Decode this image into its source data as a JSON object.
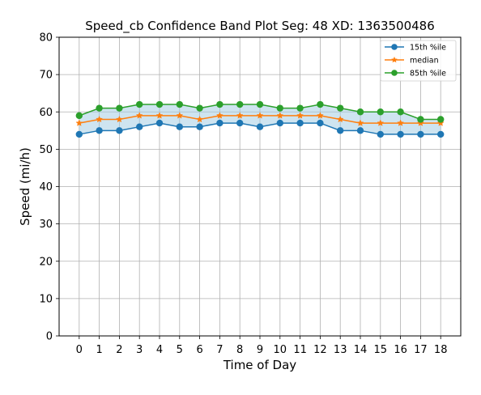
{
  "chart_data": {
    "type": "line",
    "title": "Speed_cb Confidence Band Plot Seg: 48 XD: 1363500486",
    "xlabel": "Time of Day",
    "ylabel": "Speed (mi/h)",
    "x": [
      0,
      1,
      2,
      3,
      4,
      5,
      6,
      7,
      8,
      9,
      10,
      11,
      12,
      13,
      14,
      15,
      16,
      17,
      18
    ],
    "xlim": [
      -1,
      19
    ],
    "ylim": [
      0,
      80
    ],
    "yticks": [
      0,
      10,
      20,
      30,
      40,
      50,
      60,
      70,
      80
    ],
    "grid": true,
    "legend_position": "upper right",
    "band": {
      "lower_series": "15th %ile",
      "upper_series": "85th %ile",
      "color": "#9ecae1"
    },
    "series": [
      {
        "name": "15th %ile",
        "color": "#1f77b4",
        "marker": "circle",
        "values": [
          54,
          55,
          55,
          56,
          57,
          56,
          56,
          57,
          57,
          56,
          57,
          57,
          57,
          55,
          55,
          54,
          54,
          54,
          54
        ]
      },
      {
        "name": "median",
        "color": "#ff7f0e",
        "marker": "star",
        "values": [
          57,
          58,
          58,
          59,
          59,
          59,
          58,
          59,
          59,
          59,
          59,
          59,
          59,
          58,
          57,
          57,
          57,
          57,
          57
        ]
      },
      {
        "name": "85th %ile",
        "color": "#2ca02c",
        "marker": "circle",
        "values": [
          59,
          61,
          61,
          62,
          62,
          62,
          61,
          62,
          62,
          62,
          61,
          61,
          62,
          61,
          60,
          60,
          60,
          58,
          58
        ]
      }
    ]
  }
}
